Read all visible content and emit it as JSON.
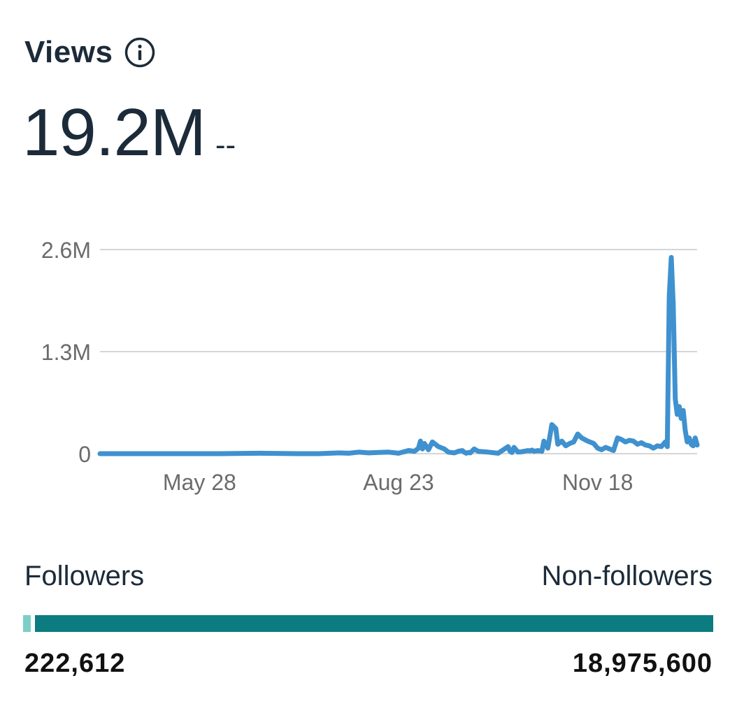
{
  "header": {
    "title": "Views",
    "info_icon": "info-icon"
  },
  "summary": {
    "total": "19.2M",
    "change": "--"
  },
  "audience": {
    "followers_label": "Followers",
    "nonfollowers_label": "Non-followers",
    "followers_value": "222,612",
    "nonfollowers_value": "18,975,600",
    "followers_count": 222612,
    "nonfollowers_count": 18975600,
    "followers_color": "#7ccfc6",
    "nonfollowers_color": "#0b7c80"
  },
  "chart_data": {
    "type": "line",
    "title": "Views",
    "xlabel": "",
    "ylabel": "",
    "ylim": [
      0,
      2600000
    ],
    "yticks": [
      {
        "value": 0,
        "label": "0"
      },
      {
        "value": 1300000,
        "label": "1.3M"
      },
      {
        "value": 2600000,
        "label": "2.6M"
      }
    ],
    "xlim": [
      0,
      300
    ],
    "xticks": [
      {
        "value": 50,
        "label": "May 28"
      },
      {
        "value": 150,
        "label": "Aug 23"
      },
      {
        "value": 250,
        "label": "Nov 18"
      }
    ],
    "grid": true,
    "line_color": "#3f91cf",
    "series": [
      {
        "name": "Views",
        "x": [
          0,
          20,
          40,
          60,
          80,
          100,
          110,
          120,
          125,
          130,
          135,
          140,
          145,
          150,
          155,
          158,
          160,
          161,
          162,
          163,
          165,
          167,
          170,
          173,
          175,
          178,
          180,
          182,
          183,
          184,
          185,
          186,
          188,
          190,
          195,
          200,
          205,
          206,
          207,
          208,
          210,
          212,
          213,
          214,
          215,
          216,
          217,
          218,
          220,
          222,
          223,
          225,
          227,
          229,
          230,
          232,
          234,
          236,
          238,
          240,
          242,
          245,
          248,
          250,
          252,
          254,
          256,
          258,
          260,
          262,
          264,
          266,
          268,
          270,
          272,
          274,
          276,
          278,
          280,
          282,
          283,
          284,
          285,
          286,
          287,
          288,
          289,
          290,
          291,
          292,
          293,
          294,
          295,
          296,
          297,
          298,
          299,
          300
        ],
        "y": [
          0,
          0,
          0,
          0,
          5000,
          0,
          0,
          10000,
          5000,
          20000,
          10000,
          15000,
          20000,
          5000,
          40000,
          30000,
          70000,
          160000,
          60000,
          130000,
          50000,
          150000,
          90000,
          60000,
          20000,
          10000,
          30000,
          40000,
          20000,
          5000,
          15000,
          10000,
          60000,
          30000,
          20000,
          5000,
          90000,
          30000,
          15000,
          80000,
          20000,
          25000,
          30000,
          35000,
          40000,
          35000,
          45000,
          30000,
          40000,
          30000,
          160000,
          70000,
          370000,
          320000,
          120000,
          160000,
          100000,
          130000,
          150000,
          250000,
          200000,
          160000,
          130000,
          70000,
          50000,
          80000,
          60000,
          40000,
          200000,
          180000,
          150000,
          170000,
          160000,
          120000,
          140000,
          110000,
          100000,
          70000,
          100000,
          90000,
          120000,
          150000,
          90000,
          2000000,
          2500000,
          1900000,
          700000,
          500000,
          600000,
          450000,
          550000,
          300000,
          150000,
          200000,
          120000,
          100000,
          200000,
          110000
        ]
      }
    ]
  }
}
